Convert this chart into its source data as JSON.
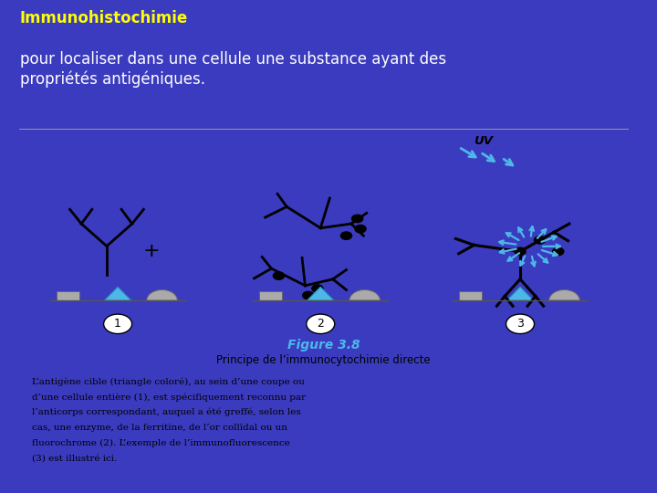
{
  "bg_color": "#3b3bbf",
  "panel_bg": "#ffffff",
  "title_line1": "Immunohistochimie",
  "title_line2": "pour localiser dans une cellule une substance ayant des\npropriétés antigéniques.",
  "title_color1": "#ffff00",
  "title_color2": "#ffffff",
  "figure_label": "Figure 3.8",
  "figure_sublabel": "Principe de l’immunocytochimie directe",
  "body_text_lines": [
    "L’antigène cible (triangle coloré), au sein d’une coupe ou",
    "d’une cellule entière (1), est spécifiquement reconnu par",
    "l’anticorps correspondant, auquel a été greffé, selon les",
    "cas, une enzyme, de la ferritine, de l’or collïdal ou un",
    "fluorochrome (2). L’exemple de l’immunofluorescence",
    "(3) est illustré ici."
  ],
  "cyan_color": "#4db8e8",
  "dark_cyan": "#2288bb",
  "gray_rect": "#aaaaaa",
  "label_font": 9,
  "body_fontsize": 7.5
}
